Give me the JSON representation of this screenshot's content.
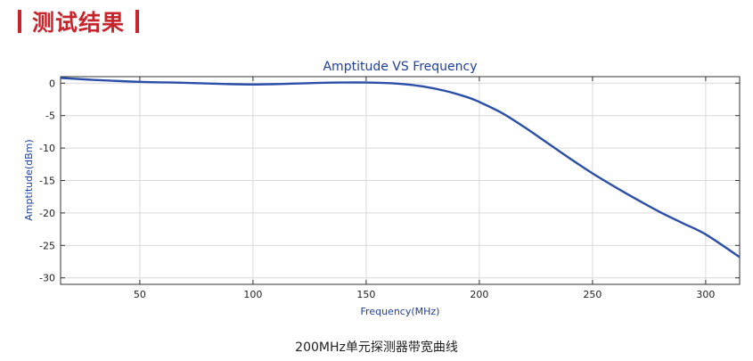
{
  "heading": {
    "text": "测试结果"
  },
  "caption": {
    "text": "200MHz单元探测器带宽曲线"
  },
  "colors": {
    "accent": "#c8242b",
    "line": "#2b4fa8",
    "title": "#1f3f9a",
    "grid": "#d9d9d9"
  },
  "chart_data": {
    "type": "line",
    "title": "Amptitude VS Frequency",
    "xlabel": "Frequency(MHz)",
    "ylabel": "Amptitude(dBm)",
    "xlim": [
      15,
      315
    ],
    "ylim": [
      -31,
      1
    ],
    "xticks": [
      50,
      100,
      150,
      200,
      250,
      300
    ],
    "yticks": [
      0,
      -5,
      -10,
      -15,
      -20,
      -25,
      -30
    ],
    "grid": true,
    "series": [
      {
        "x": [
          15,
          30,
          50,
          70,
          90,
          100,
          110,
          130,
          150,
          165,
          175,
          185,
          195,
          200,
          210,
          220,
          230,
          240,
          250,
          260,
          270,
          280,
          290,
          300,
          315
        ],
        "y": [
          0.8,
          0.5,
          0.2,
          0.05,
          -0.15,
          -0.2,
          -0.15,
          0.05,
          0.1,
          -0.1,
          -0.5,
          -1.2,
          -2.2,
          -2.9,
          -4.6,
          -6.8,
          -9.2,
          -11.6,
          -13.9,
          -16.0,
          -18.0,
          -19.9,
          -21.6,
          -23.3,
          -26.8
        ]
      }
    ]
  }
}
